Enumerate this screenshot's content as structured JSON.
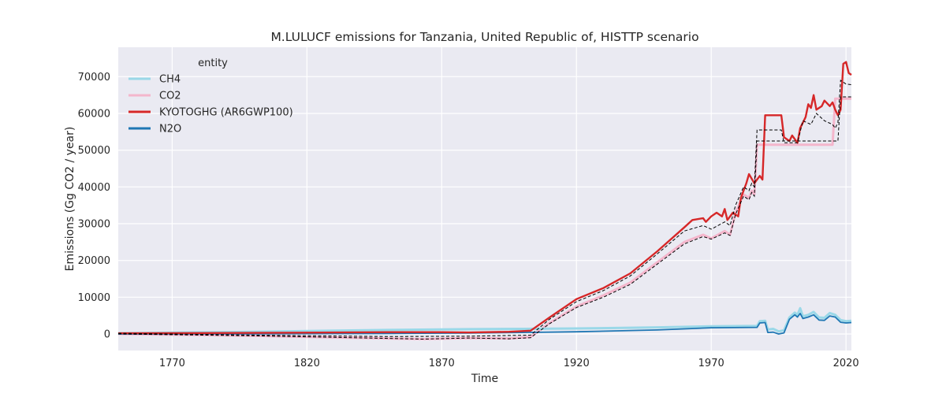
{
  "chart_data": {
    "type": "line",
    "title": "M.LULUCF emissions for Tanzania, United Republic of, HISTTP scenario",
    "xlabel": "Time",
    "ylabel": "Emissions (Gg CO2 / year)",
    "xlim": [
      1750,
      2022
    ],
    "ylim": [
      -4500,
      78000
    ],
    "xticks": [
      1770,
      1820,
      1870,
      1920,
      1970,
      2020
    ],
    "yticks": [
      0,
      10000,
      20000,
      30000,
      40000,
      50000,
      60000,
      70000
    ],
    "grid": true,
    "legend": {
      "title": "entity",
      "placement": "top-left"
    },
    "series": [
      {
        "name": "CH4",
        "color": "#9ad8e8",
        "points": [
          [
            1750,
            200
          ],
          [
            1800,
            600
          ],
          [
            1850,
            1100
          ],
          [
            1880,
            1300
          ],
          [
            1900,
            1400
          ],
          [
            1920,
            1500
          ],
          [
            1950,
            1800
          ],
          [
            1970,
            2100
          ],
          [
            1987,
            2200
          ],
          [
            1988,
            3500
          ],
          [
            1990,
            3600
          ],
          [
            1991,
            1200
          ],
          [
            1993,
            1400
          ],
          [
            1995,
            700
          ],
          [
            1997,
            1000
          ],
          [
            1999,
            4500
          ],
          [
            2001,
            5800
          ],
          [
            2002,
            5200
          ],
          [
            2003,
            7000
          ],
          [
            2004,
            4800
          ],
          [
            2006,
            5200
          ],
          [
            2008,
            6000
          ],
          [
            2010,
            4500
          ],
          [
            2012,
            4400
          ],
          [
            2014,
            5700
          ],
          [
            2016,
            5200
          ],
          [
            2018,
            3800
          ],
          [
            2020,
            3500
          ],
          [
            2022,
            3600
          ]
        ]
      },
      {
        "name": "CO2",
        "color": "#f4b6cc",
        "points": [
          [
            1750,
            0
          ],
          [
            1800,
            -500
          ],
          [
            1850,
            -1200
          ],
          [
            1863,
            -1400
          ],
          [
            1880,
            -1100
          ],
          [
            1895,
            -1200
          ],
          [
            1903,
            -800
          ],
          [
            1910,
            3000
          ],
          [
            1920,
            7500
          ],
          [
            1930,
            10500
          ],
          [
            1940,
            14000
          ],
          [
            1950,
            19500
          ],
          [
            1960,
            25000
          ],
          [
            1967,
            27000
          ],
          [
            1970,
            26000
          ],
          [
            1975,
            28000
          ],
          [
            1977,
            27000
          ],
          [
            1979,
            33000
          ],
          [
            1982,
            38000
          ],
          [
            1984,
            37000
          ],
          [
            1985,
            39000
          ],
          [
            1986,
            38000
          ],
          [
            1987,
            51500
          ],
          [
            2015,
            51500
          ],
          [
            2016,
            64000
          ],
          [
            2022,
            64000
          ]
        ]
      },
      {
        "name": "KYOTOGHG (AR6GWP100)",
        "color": "#d62728",
        "points": [
          [
            1750,
            200
          ],
          [
            1800,
            300
          ],
          [
            1850,
            500
          ],
          [
            1870,
            500
          ],
          [
            1880,
            400
          ],
          [
            1895,
            600
          ],
          [
            1903,
            900
          ],
          [
            1910,
            4500
          ],
          [
            1920,
            9500
          ],
          [
            1930,
            12500
          ],
          [
            1940,
            16500
          ],
          [
            1950,
            22500
          ],
          [
            1960,
            29000
          ],
          [
            1963,
            31000
          ],
          [
            1967,
            31500
          ],
          [
            1968,
            30500
          ],
          [
            1970,
            32000
          ],
          [
            1972,
            33000
          ],
          [
            1974,
            32000
          ],
          [
            1975,
            34000
          ],
          [
            1976,
            31000
          ],
          [
            1978,
            33000
          ],
          [
            1980,
            32000
          ],
          [
            1981,
            37000
          ],
          [
            1983,
            41000
          ],
          [
            1984,
            43500
          ],
          [
            1986,
            41000
          ],
          [
            1988,
            43000
          ],
          [
            1989,
            42000
          ],
          [
            1990,
            59500
          ],
          [
            1996,
            59500
          ],
          [
            1997,
            53500
          ],
          [
            1999,
            52500
          ],
          [
            2000,
            54000
          ],
          [
            2002,
            52000
          ],
          [
            2003,
            56000
          ],
          [
            2005,
            59000
          ],
          [
            2006,
            62500
          ],
          [
            2007,
            61500
          ],
          [
            2008,
            65000
          ],
          [
            2009,
            61000
          ],
          [
            2011,
            62000
          ],
          [
            2012,
            63500
          ],
          [
            2014,
            62000
          ],
          [
            2015,
            63000
          ],
          [
            2016,
            61000
          ],
          [
            2017,
            59500
          ],
          [
            2018,
            61000
          ],
          [
            2019,
            73500
          ],
          [
            2020,
            74000
          ],
          [
            2021,
            71000
          ],
          [
            2022,
            70500
          ]
        ]
      },
      {
        "name": "N2O",
        "color": "#1f77b4",
        "points": [
          [
            1750,
            0
          ],
          [
            1800,
            50
          ],
          [
            1850,
            150
          ],
          [
            1880,
            250
          ],
          [
            1900,
            400
          ],
          [
            1920,
            600
          ],
          [
            1950,
            1100
          ],
          [
            1970,
            1700
          ],
          [
            1987,
            1800
          ],
          [
            1988,
            3000
          ],
          [
            1990,
            3100
          ],
          [
            1991,
            400
          ],
          [
            1993,
            500
          ],
          [
            1995,
            0
          ],
          [
            1997,
            300
          ],
          [
            1999,
            4000
          ],
          [
            2001,
            5200
          ],
          [
            2002,
            4600
          ],
          [
            2003,
            5600
          ],
          [
            2004,
            4200
          ],
          [
            2006,
            4600
          ],
          [
            2008,
            5200
          ],
          [
            2010,
            3800
          ],
          [
            2012,
            3700
          ],
          [
            2014,
            4900
          ],
          [
            2016,
            4600
          ],
          [
            2018,
            3200
          ],
          [
            2020,
            3000
          ],
          [
            2022,
            3100
          ]
        ]
      }
    ],
    "envelope_lines": [
      {
        "style": "dashed",
        "color": "#000000",
        "points": [
          [
            1750,
            200
          ],
          [
            1800,
            -300
          ],
          [
            1850,
            -700
          ],
          [
            1880,
            -600
          ],
          [
            1903,
            -300
          ],
          [
            1910,
            4000
          ],
          [
            1920,
            8800
          ],
          [
            1930,
            11800
          ],
          [
            1940,
            15800
          ],
          [
            1950,
            21800
          ],
          [
            1960,
            28000
          ],
          [
            1967,
            29500
          ],
          [
            1970,
            28500
          ],
          [
            1975,
            30500
          ],
          [
            1977,
            29500
          ],
          [
            1979,
            35000
          ],
          [
            1982,
            40000
          ],
          [
            1984,
            39000
          ],
          [
            1985,
            41000
          ],
          [
            1986,
            40000
          ],
          [
            1987,
            55500
          ],
          [
            1996,
            55500
          ],
          [
            1997,
            52000
          ],
          [
            2002,
            52000
          ],
          [
            2004,
            58000
          ],
          [
            2007,
            57000
          ],
          [
            2009,
            60000
          ],
          [
            2012,
            58000
          ],
          [
            2015,
            57000
          ],
          [
            2016,
            56000
          ],
          [
            2017,
            57500
          ],
          [
            2018,
            69000
          ],
          [
            2020,
            68000
          ],
          [
            2022,
            67800
          ]
        ]
      },
      {
        "style": "dashed",
        "color": "#000000",
        "points": [
          [
            1750,
            0
          ],
          [
            1800,
            -500
          ],
          [
            1850,
            -1200
          ],
          [
            1863,
            -1400
          ],
          [
            1880,
            -1100
          ],
          [
            1895,
            -1300
          ],
          [
            1903,
            -1000
          ],
          [
            1910,
            2800
          ],
          [
            1920,
            7200
          ],
          [
            1930,
            10000
          ],
          [
            1940,
            13500
          ],
          [
            1950,
            19000
          ],
          [
            1960,
            24500
          ],
          [
            1967,
            26500
          ],
          [
            1970,
            25800
          ],
          [
            1975,
            27500
          ],
          [
            1977,
            26800
          ],
          [
            1979,
            32500
          ],
          [
            1982,
            37500
          ],
          [
            1984,
            36500
          ],
          [
            1985,
            38500
          ],
          [
            1986,
            37500
          ],
          [
            1987,
            52500
          ],
          [
            2017,
            52500
          ],
          [
            2018,
            64500
          ],
          [
            2022,
            64500
          ]
        ]
      }
    ]
  }
}
